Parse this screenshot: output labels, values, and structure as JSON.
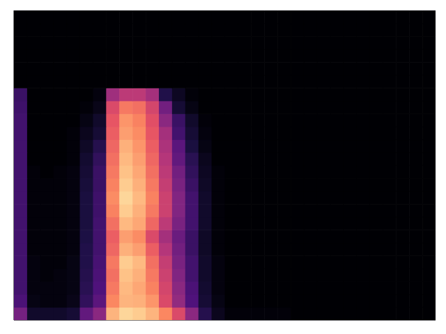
{
  "chart_data": {
    "type": "heatmap",
    "tick_labels": false,
    "xlim": [
      0,
      32
    ],
    "ylim": [
      0,
      24
    ],
    "zlim": [
      0,
      100
    ],
    "z": [
      [
        35,
        8,
        8,
        8,
        10,
        30,
        40,
        85,
        92,
        90,
        85,
        75,
        60,
        40,
        15,
        5,
        1,
        1,
        1,
        1,
        1,
        0,
        0,
        0,
        0,
        0,
        0,
        0,
        0,
        0,
        0,
        0
      ],
      [
        24,
        3,
        2,
        2,
        4,
        18,
        28,
        75,
        85,
        84,
        78,
        60,
        42,
        25,
        10,
        3,
        0,
        0,
        0,
        0,
        0,
        0,
        0,
        0,
        0,
        0,
        0,
        0,
        0,
        0,
        0,
        0
      ],
      [
        22,
        2,
        2,
        2,
        3,
        16,
        25,
        72,
        86,
        82,
        74,
        58,
        40,
        24,
        9,
        2,
        0,
        0,
        0,
        0,
        0,
        0,
        0,
        0,
        0,
        0,
        0,
        0,
        0,
        0,
        0,
        0
      ],
      [
        22,
        2,
        1,
        2,
        3,
        15,
        24,
        70,
        88,
        84,
        72,
        56,
        38,
        22,
        8,
        2,
        0,
        0,
        0,
        0,
        0,
        0,
        0,
        0,
        0,
        0,
        0,
        0,
        0,
        0,
        0,
        0
      ],
      [
        22,
        2,
        1,
        1,
        3,
        14,
        23,
        72,
        90,
        86,
        70,
        54,
        36,
        22,
        8,
        2,
        0,
        0,
        0,
        0,
        0,
        0,
        0,
        0,
        0,
        0,
        0,
        0,
        0,
        0,
        0,
        0
      ],
      [
        22,
        1,
        1,
        1,
        2,
        14,
        22,
        68,
        84,
        80,
        66,
        50,
        34,
        20,
        7,
        1,
        0,
        0,
        0,
        0,
        0,
        0,
        0,
        0,
        0,
        0,
        0,
        0,
        0,
        0,
        0,
        0
      ],
      [
        22,
        1,
        1,
        1,
        2,
        13,
        22,
        66,
        80,
        76,
        60,
        46,
        32,
        20,
        7,
        1,
        0,
        0,
        0,
        0,
        0,
        0,
        0,
        0,
        0,
        0,
        0,
        0,
        0,
        0,
        0,
        0
      ],
      [
        22,
        1,
        1,
        1,
        2,
        12,
        22,
        70,
        86,
        82,
        68,
        52,
        36,
        22,
        8,
        1,
        0,
        0,
        0,
        0,
        0,
        0,
        0,
        0,
        0,
        0,
        0,
        0,
        0,
        0,
        0,
        0
      ],
      [
        22,
        1,
        1,
        1,
        2,
        12,
        21,
        74,
        90,
        84,
        72,
        56,
        38,
        22,
        8,
        1,
        0,
        0,
        0,
        0,
        0,
        0,
        0,
        0,
        0,
        0,
        0,
        0,
        0,
        0,
        0,
        0
      ],
      [
        22,
        1,
        1,
        1,
        2,
        12,
        21,
        76,
        92,
        86,
        74,
        56,
        38,
        22,
        8,
        1,
        0,
        0,
        0,
        0,
        0,
        0,
        0,
        0,
        0,
        0,
        0,
        0,
        0,
        0,
        0,
        0
      ],
      [
        22,
        1,
        1,
        1,
        2,
        11,
        20,
        74,
        90,
        84,
        72,
        54,
        36,
        20,
        7,
        1,
        0,
        0,
        0,
        0,
        0,
        0,
        0,
        0,
        0,
        0,
        0,
        0,
        0,
        0,
        0,
        0
      ],
      [
        22,
        1,
        0,
        1,
        2,
        10,
        20,
        72,
        88,
        82,
        70,
        52,
        34,
        18,
        6,
        1,
        0,
        0,
        0,
        0,
        0,
        0,
        0,
        0,
        0,
        0,
        0,
        0,
        0,
        0,
        0,
        0
      ],
      [
        22,
        0,
        0,
        0,
        1,
        9,
        18,
        70,
        86,
        80,
        68,
        50,
        30,
        16,
        5,
        0,
        0,
        0,
        0,
        0,
        0,
        0,
        0,
        0,
        0,
        0,
        0,
        0,
        0,
        0,
        0,
        0
      ],
      [
        22,
        0,
        0,
        0,
        1,
        7,
        15,
        68,
        84,
        78,
        66,
        48,
        28,
        12,
        3,
        0,
        0,
        0,
        0,
        0,
        0,
        0,
        0,
        0,
        0,
        0,
        0,
        0,
        0,
        0,
        0,
        0
      ],
      [
        22,
        0,
        0,
        0,
        1,
        5,
        10,
        66,
        80,
        76,
        64,
        46,
        22,
        10,
        2,
        0,
        0,
        0,
        0,
        0,
        0,
        0,
        0,
        0,
        0,
        0,
        0,
        0,
        0,
        0,
        0,
        0
      ],
      [
        22,
        0,
        0,
        0,
        0,
        3,
        8,
        64,
        78,
        74,
        62,
        40,
        20,
        8,
        1,
        0,
        0,
        0,
        0,
        0,
        0,
        0,
        0,
        0,
        0,
        0,
        0,
        0,
        0,
        0,
        0,
        0
      ],
      [
        21,
        0,
        0,
        0,
        0,
        1,
        4,
        60,
        72,
        70,
        58,
        34,
        10,
        3,
        0,
        0,
        0,
        0,
        0,
        0,
        0,
        0,
        0,
        0,
        0,
        0,
        0,
        0,
        0,
        0,
        0,
        0
      ],
      [
        20,
        0,
        0,
        0,
        0,
        0,
        2,
        45,
        52,
        52,
        46,
        14,
        6,
        1,
        0,
        0,
        0,
        0,
        0,
        0,
        0,
        0,
        0,
        0,
        0,
        0,
        0,
        0,
        0,
        0,
        0,
        0
      ],
      [
        0,
        0,
        0,
        0,
        0,
        0,
        0,
        0,
        0,
        0,
        0,
        0,
        0,
        0,
        0,
        0,
        0,
        0,
        0,
        0,
        0,
        0,
        0,
        0,
        0,
        0,
        0,
        0,
        0,
        0,
        0,
        0
      ],
      [
        0,
        0,
        0,
        0,
        0,
        0,
        0,
        0,
        0,
        0,
        0,
        0,
        0,
        0,
        0,
        0,
        0,
        0,
        0,
        0,
        0,
        0,
        0,
        0,
        0,
        0,
        0,
        0,
        0,
        0,
        0,
        0
      ],
      [
        0,
        0,
        0,
        0,
        0,
        0,
        0,
        0,
        0,
        0,
        0,
        0,
        0,
        0,
        0,
        0,
        0,
        0,
        0,
        0,
        0,
        0,
        0,
        0,
        0,
        0,
        0,
        0,
        0,
        0,
        0,
        0
      ],
      [
        0,
        0,
        0,
        0,
        0,
        0,
        0,
        0,
        0,
        0,
        0,
        0,
        0,
        0,
        0,
        0,
        0,
        0,
        0,
        0,
        0,
        0,
        0,
        0,
        0,
        0,
        0,
        0,
        0,
        0,
        0,
        0
      ],
      [
        0,
        0,
        0,
        0,
        0,
        0,
        0,
        0,
        0,
        0,
        0,
        0,
        0,
        0,
        0,
        0,
        0,
        0,
        0,
        0,
        0,
        0,
        0,
        0,
        0,
        0,
        0,
        0,
        0,
        0,
        0,
        0
      ],
      [
        0,
        0,
        0,
        0,
        0,
        0,
        0,
        0,
        0,
        0,
        0,
        0,
        0,
        0,
        0,
        0,
        0,
        0,
        0,
        0,
        0,
        0,
        0,
        0,
        0,
        0,
        0,
        0,
        0,
        0,
        0,
        0
      ]
    ]
  }
}
